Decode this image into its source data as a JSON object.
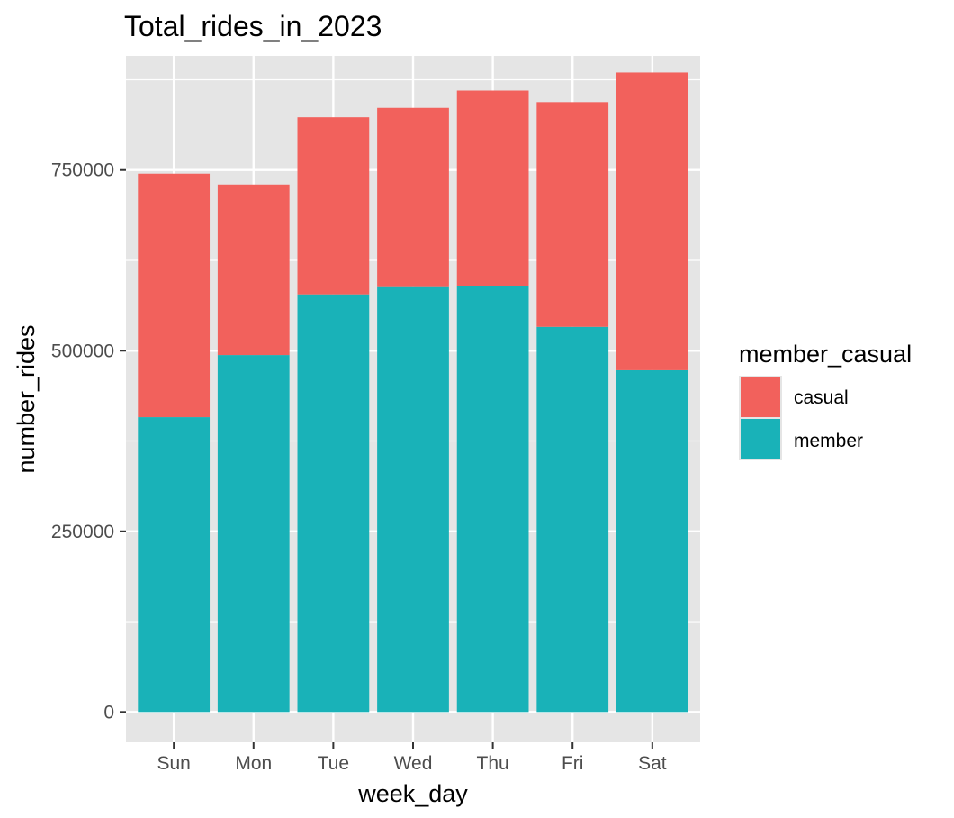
{
  "chart_data": {
    "type": "bar",
    "stacked": true,
    "title": "Total_rides_in_2023",
    "xlabel": "week_day",
    "ylabel": "number_rides",
    "categories": [
      "Sun",
      "Mon",
      "Tue",
      "Wed",
      "Thu",
      "Fri",
      "Sat"
    ],
    "series": [
      {
        "name": "member",
        "color": "#19B2B8",
        "values": [
          408000,
          494000,
          578000,
          588000,
          590000,
          533000,
          473000
        ]
      },
      {
        "name": "casual",
        "color": "#F2615C",
        "values": [
          337000,
          236000,
          245000,
          248000,
          270000,
          311000,
          412000
        ]
      }
    ],
    "ylim": [
      -42000,
      908000
    ],
    "yticks": [
      0,
      250000,
      500000,
      750000
    ],
    "ytick_labels": [
      "0",
      "250000",
      "500000",
      "750000"
    ],
    "grid": true,
    "legend": {
      "title": "member_casual",
      "placement": "right",
      "entries": [
        {
          "label": "casual",
          "color": "#F2615C"
        },
        {
          "label": "member",
          "color": "#19B2B8"
        }
      ]
    },
    "panel_background": "#E5E5E5",
    "grid_color": "#FFFFFF"
  }
}
